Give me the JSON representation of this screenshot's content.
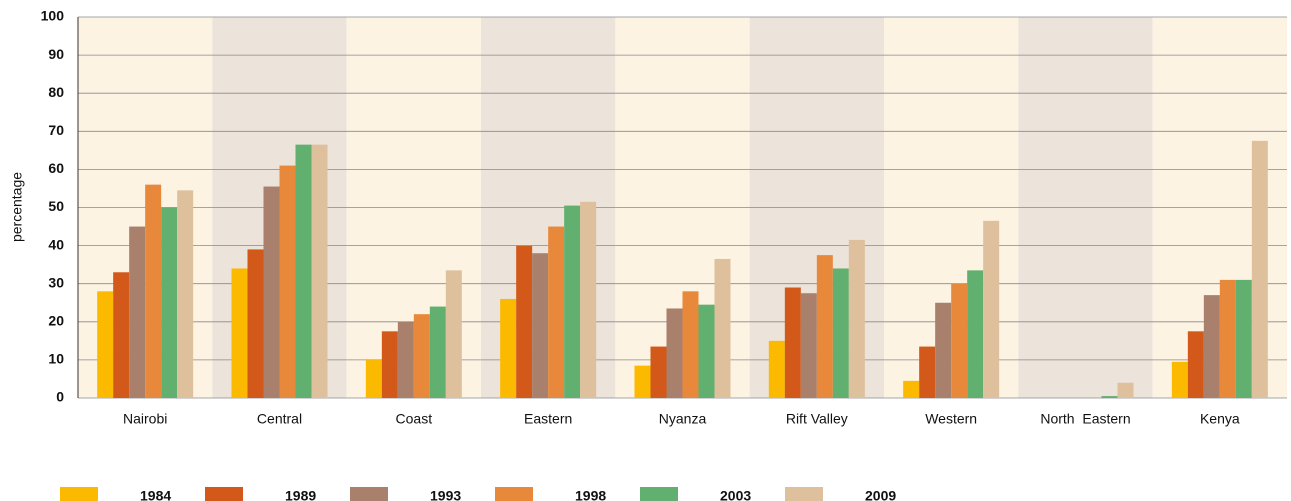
{
  "chart_data": {
    "type": "bar",
    "y_label": "percentage",
    "categories": [
      "Nairobi",
      "Central",
      "Coast",
      "Eastern",
      "Nyanza",
      "Rift Valley",
      "Western",
      "North  Eastern",
      "Kenya"
    ],
    "series": [
      {
        "name": "1984",
        "color": "#fbb900",
        "values": [
          28,
          34,
          10,
          26,
          8.5,
          15,
          4.5,
          0,
          9.5
        ]
      },
      {
        "name": "1989",
        "color": "#d2591a",
        "values": [
          33,
          39,
          17.5,
          40,
          13.5,
          29,
          13.5,
          0,
          17.5
        ]
      },
      {
        "name": "1993",
        "color": "#a8806b",
        "values": [
          45,
          55.5,
          20,
          38,
          23.5,
          27.5,
          25,
          0,
          27
        ]
      },
      {
        "name": "1998",
        "color": "#e8883a",
        "values": [
          56,
          61,
          22,
          45,
          28,
          37.5,
          30,
          0,
          31
        ]
      },
      {
        "name": "2003",
        "color": "#62b06f",
        "values": [
          50,
          66.5,
          24,
          50.5,
          24.5,
          34,
          33.5,
          0.5,
          31
        ]
      },
      {
        "name": "2009",
        "color": "#dfc09c",
        "values": [
          54.5,
          66.5,
          33.5,
          51.5,
          36.5,
          41.5,
          46.5,
          4,
          67.5
        ]
      }
    ],
    "ylim": [
      0,
      100
    ],
    "yticks": [
      0,
      10,
      20,
      30,
      40,
      50,
      60,
      70,
      80,
      90,
      100
    ],
    "grid": true,
    "legend": "bottom"
  }
}
